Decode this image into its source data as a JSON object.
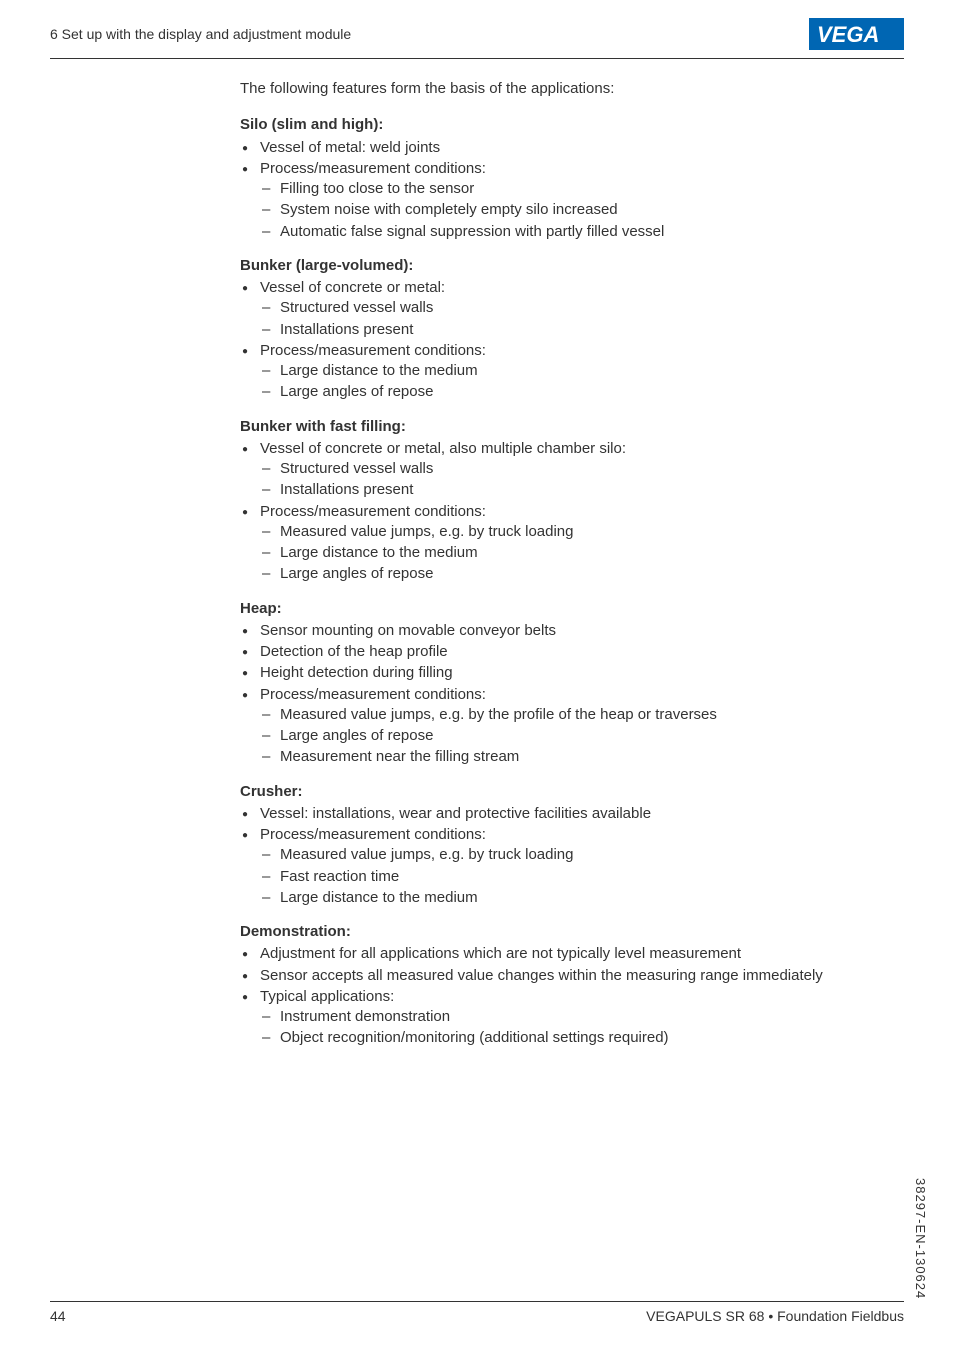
{
  "header": {
    "title": "6 Set up with the display and adjustment module",
    "logo_text": "VEGA"
  },
  "content": {
    "intro": "The following features form the basis of the applications:",
    "sections": [
      {
        "title": "Silo (slim and high):",
        "items": [
          {
            "text": "Vessel of metal: weld joints"
          },
          {
            "text": "Process/measurement conditions:",
            "subs": [
              "Filling too close to the sensor",
              "System noise with completely empty silo increased",
              "Automatic false signal suppression with partly filled vessel"
            ]
          }
        ]
      },
      {
        "title": "Bunker (large-volumed):",
        "items": [
          {
            "text": "Vessel of concrete or metal:",
            "subs": [
              "Structured vessel walls",
              "Installations present"
            ]
          },
          {
            "text": "Process/measurement conditions:",
            "subs": [
              "Large distance to the medium",
              "Large angles of repose"
            ]
          }
        ]
      },
      {
        "title": "Bunker with fast filling:",
        "items": [
          {
            "text": "Vessel of concrete or metal, also multiple chamber silo:",
            "subs": [
              "Structured vessel walls",
              "Installations present"
            ]
          },
          {
            "text": "Process/measurement conditions:",
            "subs": [
              "Measured value jumps, e.g. by truck loading",
              "Large distance to the medium",
              "Large angles of repose"
            ]
          }
        ]
      },
      {
        "title": "Heap:",
        "items": [
          {
            "text": "Sensor mounting on movable conveyor belts"
          },
          {
            "text": "Detection of the heap profile"
          },
          {
            "text": "Height detection during filling"
          },
          {
            "text": "Process/measurement conditions:",
            "subs": [
              "Measured value jumps, e.g. by the profile of the heap or traverses",
              "Large angles of repose",
              "Measurement near the filling stream"
            ]
          }
        ]
      },
      {
        "title": "Crusher:",
        "items": [
          {
            "text": "Vessel: installations, wear and protective facilities available"
          },
          {
            "text": "Process/measurement conditions:",
            "subs": [
              "Measured value jumps, e.g. by truck loading",
              "Fast reaction time",
              "Large distance to the medium"
            ]
          }
        ]
      },
      {
        "title": "Demonstration:",
        "items": [
          {
            "text": "Adjustment for all applications which are not typically level measurement"
          },
          {
            "text": "Sensor accepts all measured value changes within the measuring range immediately"
          },
          {
            "text": "Typical applications:",
            "subs": [
              "Instrument demonstration",
              "Object recognition/monitoring (additional settings required)"
            ]
          }
        ]
      }
    ]
  },
  "footer": {
    "page_number": "44",
    "doc_title": "VEGAPULS SR 68 • Foundation Fieldbus"
  },
  "sidebar": {
    "code": "38297-EN-130624"
  },
  "logo_colors": {
    "bg": "#0066b3",
    "fg": "#ffffff"
  }
}
